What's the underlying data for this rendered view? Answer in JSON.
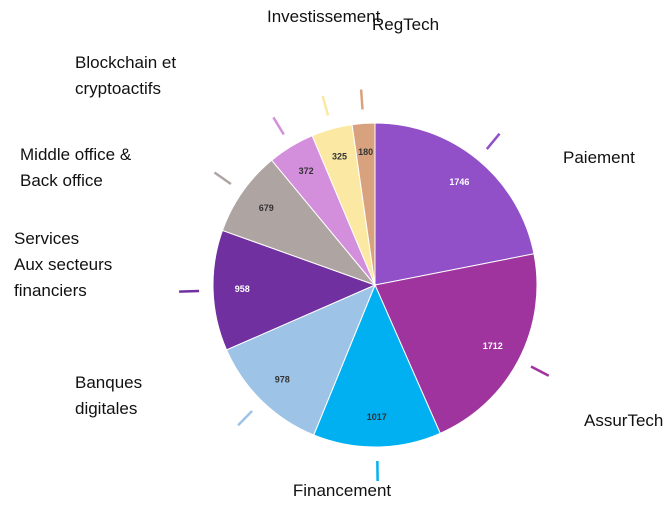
{
  "chart_data": {
    "type": "pie",
    "categories": [
      "Paiement",
      "AssurTech",
      "Financement",
      "Banques\ndigitales",
      "Services\nAux secteurs\nfinanciers",
      "Middle office &\nBack office",
      "Blockchain et\ncryptoactifs",
      "Investissement",
      "RegTech"
    ],
    "values": [
      1746,
      1712,
      1017,
      978,
      958,
      679,
      372,
      325,
      180
    ],
    "colors": [
      "#9150c8",
      "#a0349e",
      "#00b0f0",
      "#9dc3e6",
      "#7030a0",
      "#aea5a3",
      "#d48fdc",
      "#fbe9a3",
      "#d9a27f"
    ]
  }
}
